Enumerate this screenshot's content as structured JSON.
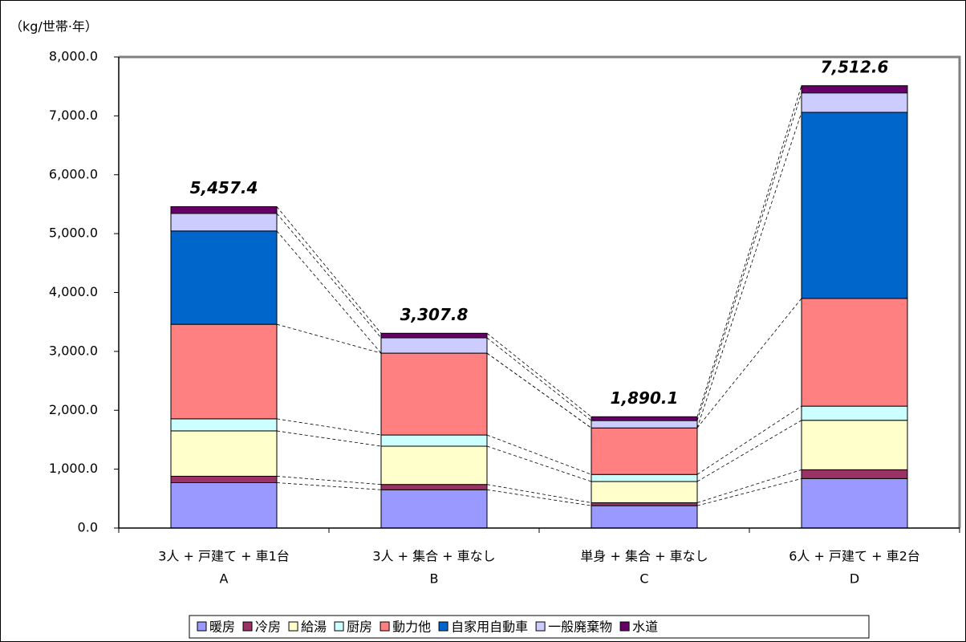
{
  "chart_data": {
    "type": "stacked_bar",
    "y_label": "（kg/世帯·年）",
    "categories": [
      "3人 + 戸建て + 車1台",
      "3人 + 集合 + 車なし",
      "単身 + 集合 + 車なし",
      "6人 + 戸建て + 車2台"
    ],
    "category_ids": [
      "A",
      "B",
      "C",
      "D"
    ],
    "series": [
      {
        "name": "暖房",
        "color": "#9999ff",
        "values": [
          770,
          650,
          380,
          840
        ]
      },
      {
        "name": "冷房",
        "color": "#993366",
        "values": [
          110,
          90,
          50,
          150
        ]
      },
      {
        "name": "給湯",
        "color": "#ffffcc",
        "values": [
          770,
          650,
          360,
          840
        ]
      },
      {
        "name": "厨房",
        "color": "#ccffff",
        "values": [
          205,
          190,
          120,
          240
        ]
      },
      {
        "name": "動力他",
        "color": "#ff8080",
        "values": [
          1605,
          1390,
          790,
          1830
        ]
      },
      {
        "name": "自家用自動車",
        "color": "#0066cc",
        "values": [
          1585,
          0,
          0,
          3160
        ]
      },
      {
        "name": "一般廃棄物",
        "color": "#ccccff",
        "values": [
          297.4,
          260,
          125,
          330
        ]
      },
      {
        "name": "水道",
        "color": "#660066",
        "values": [
          115,
          77.8,
          65.1,
          122.6
        ]
      }
    ],
    "totals": {
      "values": [
        5457.4,
        3307.8,
        1890.1,
        7512.6
      ],
      "value_labels": [
        "5,457.4",
        "3,307.8",
        "1,890.1",
        "7,512.6"
      ]
    },
    "ylim": [
      0,
      8000
    ],
    "yticks": [
      {
        "value": 0,
        "label": "0.0"
      },
      {
        "value": 1000,
        "label": "1,000.0"
      },
      {
        "value": 2000,
        "label": "2,000.0"
      },
      {
        "value": 3000,
        "label": "3,000.0"
      },
      {
        "value": 4000,
        "label": "4,000.0"
      },
      {
        "value": 5000,
        "label": "5,000.0"
      },
      {
        "value": 6000,
        "label": "6,000.0"
      },
      {
        "value": 7000,
        "label": "7,000.0"
      },
      {
        "value": 8000,
        "label": "8,000.0"
      }
    ],
    "legend": "bottom"
  }
}
